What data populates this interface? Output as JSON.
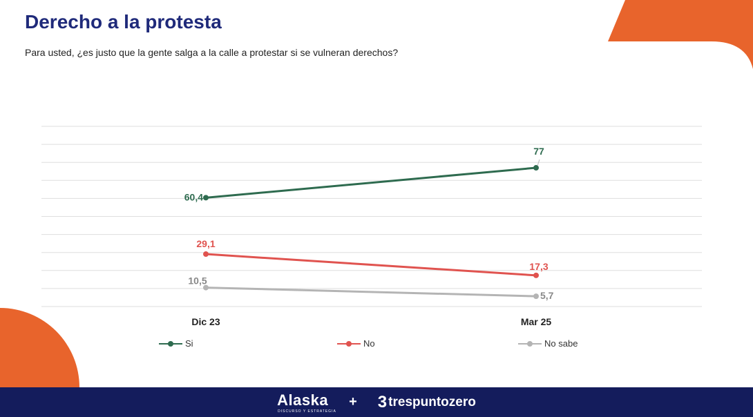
{
  "title": "Derecho a la protesta",
  "subtitle": "Para usted, ¿es justo que la gente salga a la calle a protestar si se vulneran derechos?",
  "colors": {
    "si": "#2e6b4f",
    "no": "#e0534f",
    "nosabe": "#b4b4b4",
    "accent": "#e8642c",
    "footer": "#141c5c",
    "title": "#1f2a7a"
  },
  "chart_data": {
    "type": "line",
    "categories": [
      "Dic 23",
      "Mar 25"
    ],
    "ylim": [
      0,
      100
    ],
    "grid": true,
    "legend_position": "bottom",
    "series": [
      {
        "name": "Si",
        "key": "si",
        "values": [
          60.4,
          77
        ],
        "labels": [
          "60,4",
          "77"
        ]
      },
      {
        "name": "No",
        "key": "no",
        "values": [
          29.1,
          17.3
        ],
        "labels": [
          "29,1",
          "17,3"
        ]
      },
      {
        "name": "No sabe",
        "key": "nosabe",
        "values": [
          10.5,
          5.7
        ],
        "labels": [
          "10,5",
          "5,7"
        ]
      }
    ]
  },
  "legend": {
    "si": "Si",
    "no": "No",
    "nosabe": "No sabe"
  },
  "footer": {
    "brand1": "Alaska",
    "brand1_tagline": "DISCURSO Y ESTRATEGIA",
    "plus": "+",
    "brand2_mark": "3",
    "brand2": "trespuntozero"
  }
}
